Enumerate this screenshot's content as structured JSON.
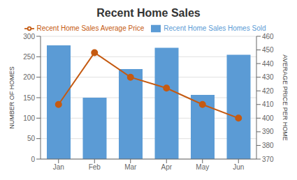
{
  "chart_data": {
    "type": "bar",
    "title": "Recent Home Sales",
    "categories": [
      "Jan",
      "Feb",
      "Mar",
      "Apr",
      "May",
      "Jun"
    ],
    "series": [
      {
        "name": "Recent Home Sales Homes Sold",
        "type": "bar",
        "color": "#5b9bd5",
        "values": [
          278,
          150,
          220,
          272,
          157,
          255
        ]
      },
      {
        "name": "Recent Home Sales Average Price",
        "type": "line",
        "color": "#c55a11",
        "marker": "circle",
        "axis": "y2",
        "values": [
          410,
          448,
          430,
          422,
          410,
          400
        ]
      }
    ],
    "ylabel": "NUMBER OF HOMES",
    "y2label": "AVERAGE PRICE PER HOME",
    "ylim": [
      0,
      300
    ],
    "yticks": [
      0,
      50,
      100,
      150,
      200,
      250,
      300
    ],
    "y2lim": [
      370,
      460
    ],
    "y2ticks": [
      370,
      380,
      390,
      400,
      410,
      420,
      430,
      440,
      450,
      460
    ],
    "grid": true,
    "legend": "top"
  }
}
